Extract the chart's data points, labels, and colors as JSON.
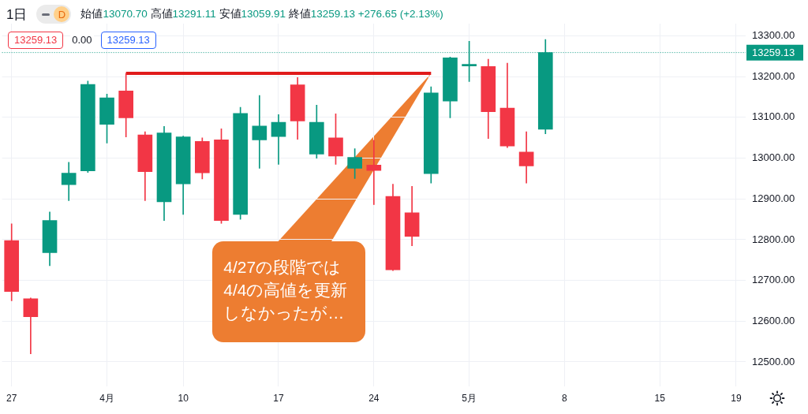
{
  "chart_data": {
    "type": "candlestick",
    "title": "1日",
    "subtitle": "始値13070.70 高値13291.11 安値13059.91 終値13259.13 +276.65 (+2.13%)",
    "categories": [
      "27",
      null,
      null,
      null,
      null,
      "4月",
      null,
      null,
      null,
      "10",
      null,
      null,
      null,
      null,
      "17",
      null,
      null,
      null,
      null,
      "24",
      null,
      null,
      null,
      null,
      "5月",
      null,
      null,
      null,
      null,
      "8",
      null,
      null,
      null,
      null,
      "15",
      null,
      null,
      null,
      "19"
    ],
    "ohlc": [
      [
        12798,
        12839,
        12650,
        12673
      ],
      [
        12655,
        12657,
        12520,
        12611
      ],
      [
        12768,
        12868,
        12736,
        12847
      ],
      [
        12935,
        12990,
        12896,
        12963
      ],
      [
        12969,
        13189,
        12965,
        13181
      ],
      [
        13083,
        13157,
        13037,
        13148
      ],
      [
        13165,
        13208,
        13052,
        13099
      ],
      [
        13057,
        13065,
        12896,
        12967
      ],
      [
        12893,
        13078,
        12847,
        13062
      ],
      [
        12937,
        13054,
        12862,
        13052
      ],
      [
        13041,
        13050,
        12949,
        12964
      ],
      [
        13045,
        13072,
        12840,
        12847
      ],
      [
        12862,
        13125,
        12850,
        13110
      ],
      [
        13045,
        13154,
        12975,
        13079
      ],
      [
        13053,
        13107,
        12985,
        13088
      ],
      [
        13180,
        13198,
        13046,
        13091
      ],
      [
        13010,
        13130,
        13000,
        13088
      ],
      [
        13050,
        13109,
        12985,
        13005
      ],
      [
        12975,
        13023,
        12950,
        13002
      ],
      [
        12983,
        13044,
        12886,
        12970
      ],
      [
        12906,
        12936,
        12724,
        12726
      ],
      [
        12866,
        12931,
        12785,
        12808
      ],
      [
        12962,
        13175,
        12939,
        13160
      ],
      [
        13140,
        13248,
        13099,
        13246
      ],
      [
        13226,
        13287,
        13188,
        13230
      ],
      [
        13225,
        13243,
        13048,
        13114
      ],
      [
        13123,
        13233,
        13026,
        13030
      ],
      [
        13015,
        13065,
        12939,
        12981
      ],
      [
        13070.7,
        13291.11,
        13059.91,
        13259.13
      ],
      null,
      null,
      null,
      null,
      null,
      null,
      null,
      null,
      null,
      null
    ],
    "colors": [
      "#f23645",
      "#f23645",
      "#089981",
      "#089981",
      "#089981",
      "#089981",
      "#f23645",
      "#f23645",
      "#089981",
      "#089981",
      "#f23645",
      "#f23645",
      "#089981",
      "#089981",
      "#089981",
      "#f23645",
      "#089981",
      "#f23645",
      "#089981",
      "#f23645",
      "#f23645",
      "#f23645",
      "#089981",
      "#089981",
      "#089981",
      "#f23645",
      "#f23645",
      "#f23645",
      "#089981",
      null,
      null,
      null,
      null,
      null,
      null,
      null,
      null,
      null,
      null
    ],
    "series": [
      {
        "type": "line",
        "color": "#e01b1b",
        "values": [
          null,
          null,
          null,
          null,
          null,
          null,
          13208,
          13208,
          13208,
          13208,
          13208,
          13208,
          13208,
          13208,
          13208,
          13208,
          13208,
          13208,
          13208,
          13208,
          13208,
          13208,
          13208,
          null,
          null,
          null,
          null,
          null,
          null,
          null,
          null,
          null,
          null,
          null,
          null,
          null,
          null,
          null,
          null
        ]
      }
    ],
    "ylim": [
      12440,
      13330
    ],
    "yticks": [
      {
        "value": 12500,
        "label": "12500.00"
      },
      {
        "value": 12600,
        "label": "12600.00"
      },
      {
        "value": 12700,
        "label": "12700.00"
      },
      {
        "value": 12800,
        "label": "12800.00"
      },
      {
        "value": 12900,
        "label": "12900.00"
      },
      {
        "value": 13000,
        "label": "13000.00"
      },
      {
        "value": 13100,
        "label": "13100.00"
      },
      {
        "value": 13200,
        "label": "13200.00"
      },
      {
        "value": 13300,
        "label": "13300.00"
      }
    ],
    "grid": true,
    "ref_lines": [
      {
        "axis": "y",
        "value": 13259.13,
        "label": "13259.13",
        "color": "#089981",
        "line_style": "dotted"
      }
    ],
    "annotations": [
      "D",
      "13259.13",
      "0.00",
      "13259.13",
      "4/27の段階では4/4の高値を更新しなかったが…"
    ]
  }
}
